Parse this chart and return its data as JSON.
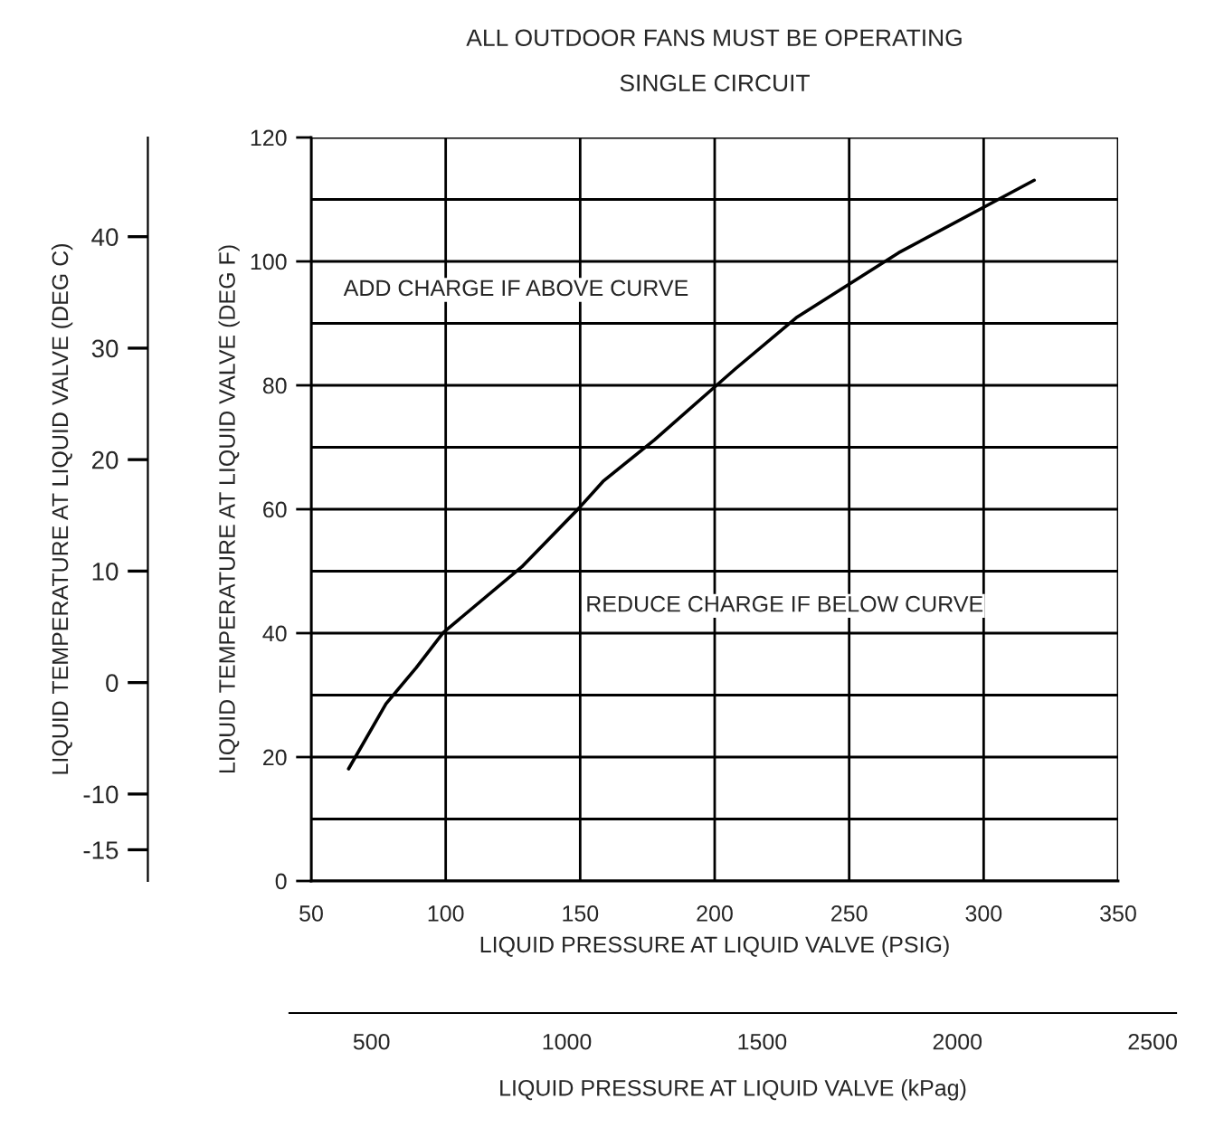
{
  "chart_data": {
    "type": "line",
    "title": "ALL OUTDOOR FANS MUST BE OPERATING",
    "subtitle": "SINGLE CIRCUIT",
    "xlabel": "LIQUID PRESSURE AT LIQUID VALVE (PSIG)",
    "ylabel": "LIQUID TEMPERATURE AT LIQUID VALVE (DEG F)",
    "y3label": "LIQUID TEMPERATURE AT LIQUID VALVE (DEG C)",
    "x2label": "LIQUID PRESSURE AT LIQUID VALVE (kPag)",
    "annotations": [
      "ADD CHARGE IF ABOVE CURVE",
      "REDUCE CHARGE IF BELOW CURVE"
    ],
    "x": [
      63.9,
      77.8,
      89.0,
      99.1,
      128.3,
      149.6,
      158.5,
      177.6,
      207.8,
      230.3,
      268.4,
      318.8
    ],
    "series": [
      {
        "color": "#000000",
        "values": [
          18.1,
          28.6,
          34.4,
          40.1,
          50.7,
          60.2,
          64.5,
          71.2,
          82.7,
          90.9,
          101.4,
          113.1
        ]
      }
    ],
    "xlim": [
      50,
      350
    ],
    "xticks": [
      50,
      100,
      150,
      200,
      250,
      300,
      350
    ],
    "ylim": [
      0,
      120
    ],
    "yticks": [
      0,
      20,
      40,
      60,
      80,
      100,
      120
    ],
    "y3lim": [
      -17.8,
      48.9
    ],
    "y3ticks": [
      40,
      30,
      20,
      10,
      0,
      -10,
      -15
    ],
    "x2lim": [
      290,
      2560
    ],
    "x2ticks": [
      500,
      1000,
      1500,
      2000,
      2500
    ],
    "grid": true,
    "marker": "none",
    "line_style": "solid"
  }
}
